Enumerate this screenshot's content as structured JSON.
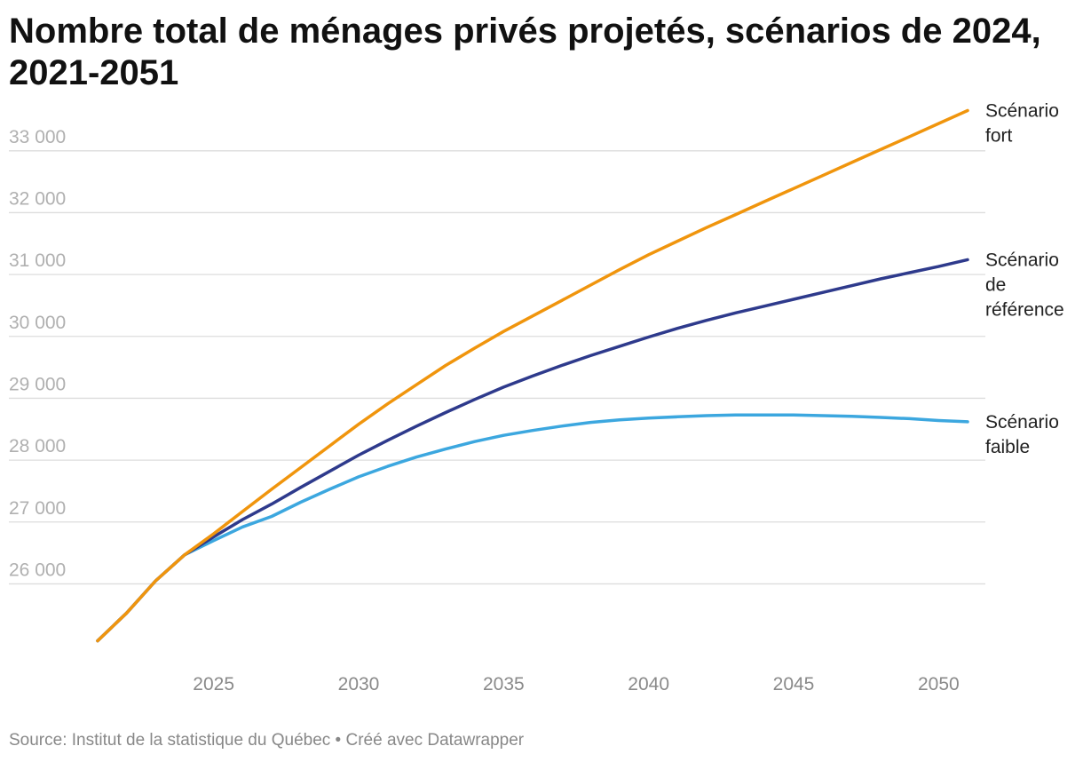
{
  "title": "Nombre total de ménages privés projetés, scénarios de 2024, 2021-2051",
  "source": "Source: Institut de la statistique du Québec • Créé avec Datawrapper",
  "chart_data": {
    "type": "line",
    "title": "Nombre total de ménages privés projetés, scénarios de 2024, 2021-2051",
    "xlabel": "",
    "ylabel": "",
    "xlim": [
      2021,
      2051
    ],
    "ylim": [
      24700,
      33600
    ],
    "y_ticks": [
      {
        "value": 26000,
        "label": "26 000"
      },
      {
        "value": 27000,
        "label": "27 000"
      },
      {
        "value": 28000,
        "label": "28 000"
      },
      {
        "value": 29000,
        "label": "29 000"
      },
      {
        "value": 30000,
        "label": "30 000"
      },
      {
        "value": 31000,
        "label": "31 000"
      },
      {
        "value": 32000,
        "label": "32 000"
      },
      {
        "value": 33000,
        "label": "33 000"
      }
    ],
    "x_ticks": [
      {
        "value": 2025,
        "label": "2025"
      },
      {
        "value": 2030,
        "label": "2030"
      },
      {
        "value": 2035,
        "label": "2035"
      },
      {
        "value": 2040,
        "label": "2040"
      },
      {
        "value": 2045,
        "label": "2045"
      },
      {
        "value": 2050,
        "label": "2050"
      }
    ],
    "grid": true,
    "legend": "direct labels at line ends (right)",
    "x": [
      2021,
      2022,
      2023,
      2024,
      2025,
      2026,
      2027,
      2028,
      2029,
      2030,
      2031,
      2032,
      2033,
      2034,
      2035,
      2036,
      2037,
      2038,
      2039,
      2040,
      2041,
      2042,
      2043,
      2044,
      2045,
      2046,
      2047,
      2048,
      2049,
      2050,
      2051
    ],
    "series": [
      {
        "name": "Scénario fort",
        "label_lines": [
          "Scénario",
          "fort"
        ],
        "color": "#f0950d",
        "values": [
          25080,
          25530,
          26050,
          26470,
          26810,
          27170,
          27530,
          27880,
          28230,
          28580,
          28910,
          29220,
          29530,
          29810,
          30080,
          30330,
          30580,
          30830,
          31080,
          31320,
          31540,
          31760,
          31970,
          32180,
          32390,
          32600,
          32810,
          33020,
          33230,
          33440,
          33650
        ]
      },
      {
        "name": "Scénario de référence",
        "label_lines": [
          "Scénario",
          "de",
          "référence"
        ],
        "color": "#2e3a8c",
        "values": [
          25080,
          25530,
          26050,
          26470,
          26760,
          27040,
          27290,
          27560,
          27820,
          28080,
          28320,
          28550,
          28770,
          28980,
          29180,
          29360,
          29530,
          29690,
          29840,
          29990,
          30130,
          30260,
          30380,
          30490,
          30600,
          30710,
          30820,
          30930,
          31030,
          31130,
          31240
        ]
      },
      {
        "name": "Scénario faible",
        "label_lines": [
          "Scénario",
          "faible"
        ],
        "color": "#3ca7df",
        "values": [
          25080,
          25530,
          26050,
          26470,
          26700,
          26920,
          27090,
          27320,
          27530,
          27730,
          27900,
          28050,
          28180,
          28300,
          28400,
          28480,
          28550,
          28610,
          28650,
          28680,
          28700,
          28720,
          28730,
          28730,
          28730,
          28720,
          28710,
          28690,
          28670,
          28640,
          28620
        ]
      }
    ]
  }
}
